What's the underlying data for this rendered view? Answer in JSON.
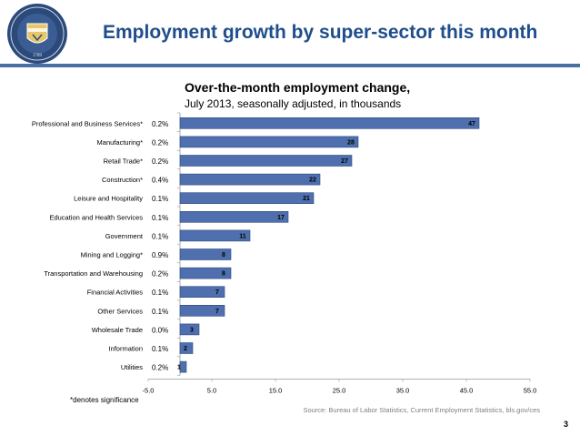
{
  "slide": {
    "title": "Employment growth by super-sector this month",
    "page_number": "3",
    "footnote": "*denotes significance",
    "source": "Source: Bureau of Labor Statistics, Current Employment Statistics, bls.gov/ces",
    "seal": {
      "year_text": "1789"
    }
  },
  "colors": {
    "bar": "#4f6fae",
    "bar_edge": "#2e4a7e",
    "title": "#1f4e8c",
    "rule": "#4a6fa5"
  },
  "chart_data": {
    "type": "bar",
    "orientation": "horizontal",
    "title": "Over-the-month employment change,",
    "subtitle": "July 2013, seasonally adjusted, in thousands",
    "categories": [
      "Professional and Business Services*",
      "Manufacturing*",
      "Retail Trade*",
      "Construction*",
      "Leisure and Hospitality",
      "Education and Health Services",
      "Government",
      "Mining and Logging*",
      "Transportation and Warehousing",
      "Financial Activities",
      "Other Services",
      "Wholesale Trade",
      "Information",
      "Utilities"
    ],
    "values": [
      47,
      28,
      27,
      22,
      21,
      17,
      11,
      8,
      8,
      7,
      7,
      3,
      2,
      1
    ],
    "percent_labels": [
      "0.2%",
      "0.2%",
      "0.2%",
      "0.4%",
      "0.1%",
      "0.1%",
      "0.1%",
      "0.9%",
      "0.2%",
      "0.1%",
      "0.1%",
      "0.0%",
      "0.1%",
      "0.2%"
    ],
    "xlim": [
      -5,
      55
    ],
    "xticks": [
      "-5.0",
      "5.0",
      "15.0",
      "25.0",
      "35.0",
      "45.0",
      "55.0"
    ],
    "xtick_values": [
      -5,
      5,
      15,
      25,
      35,
      45,
      55
    ],
    "grid": false
  }
}
